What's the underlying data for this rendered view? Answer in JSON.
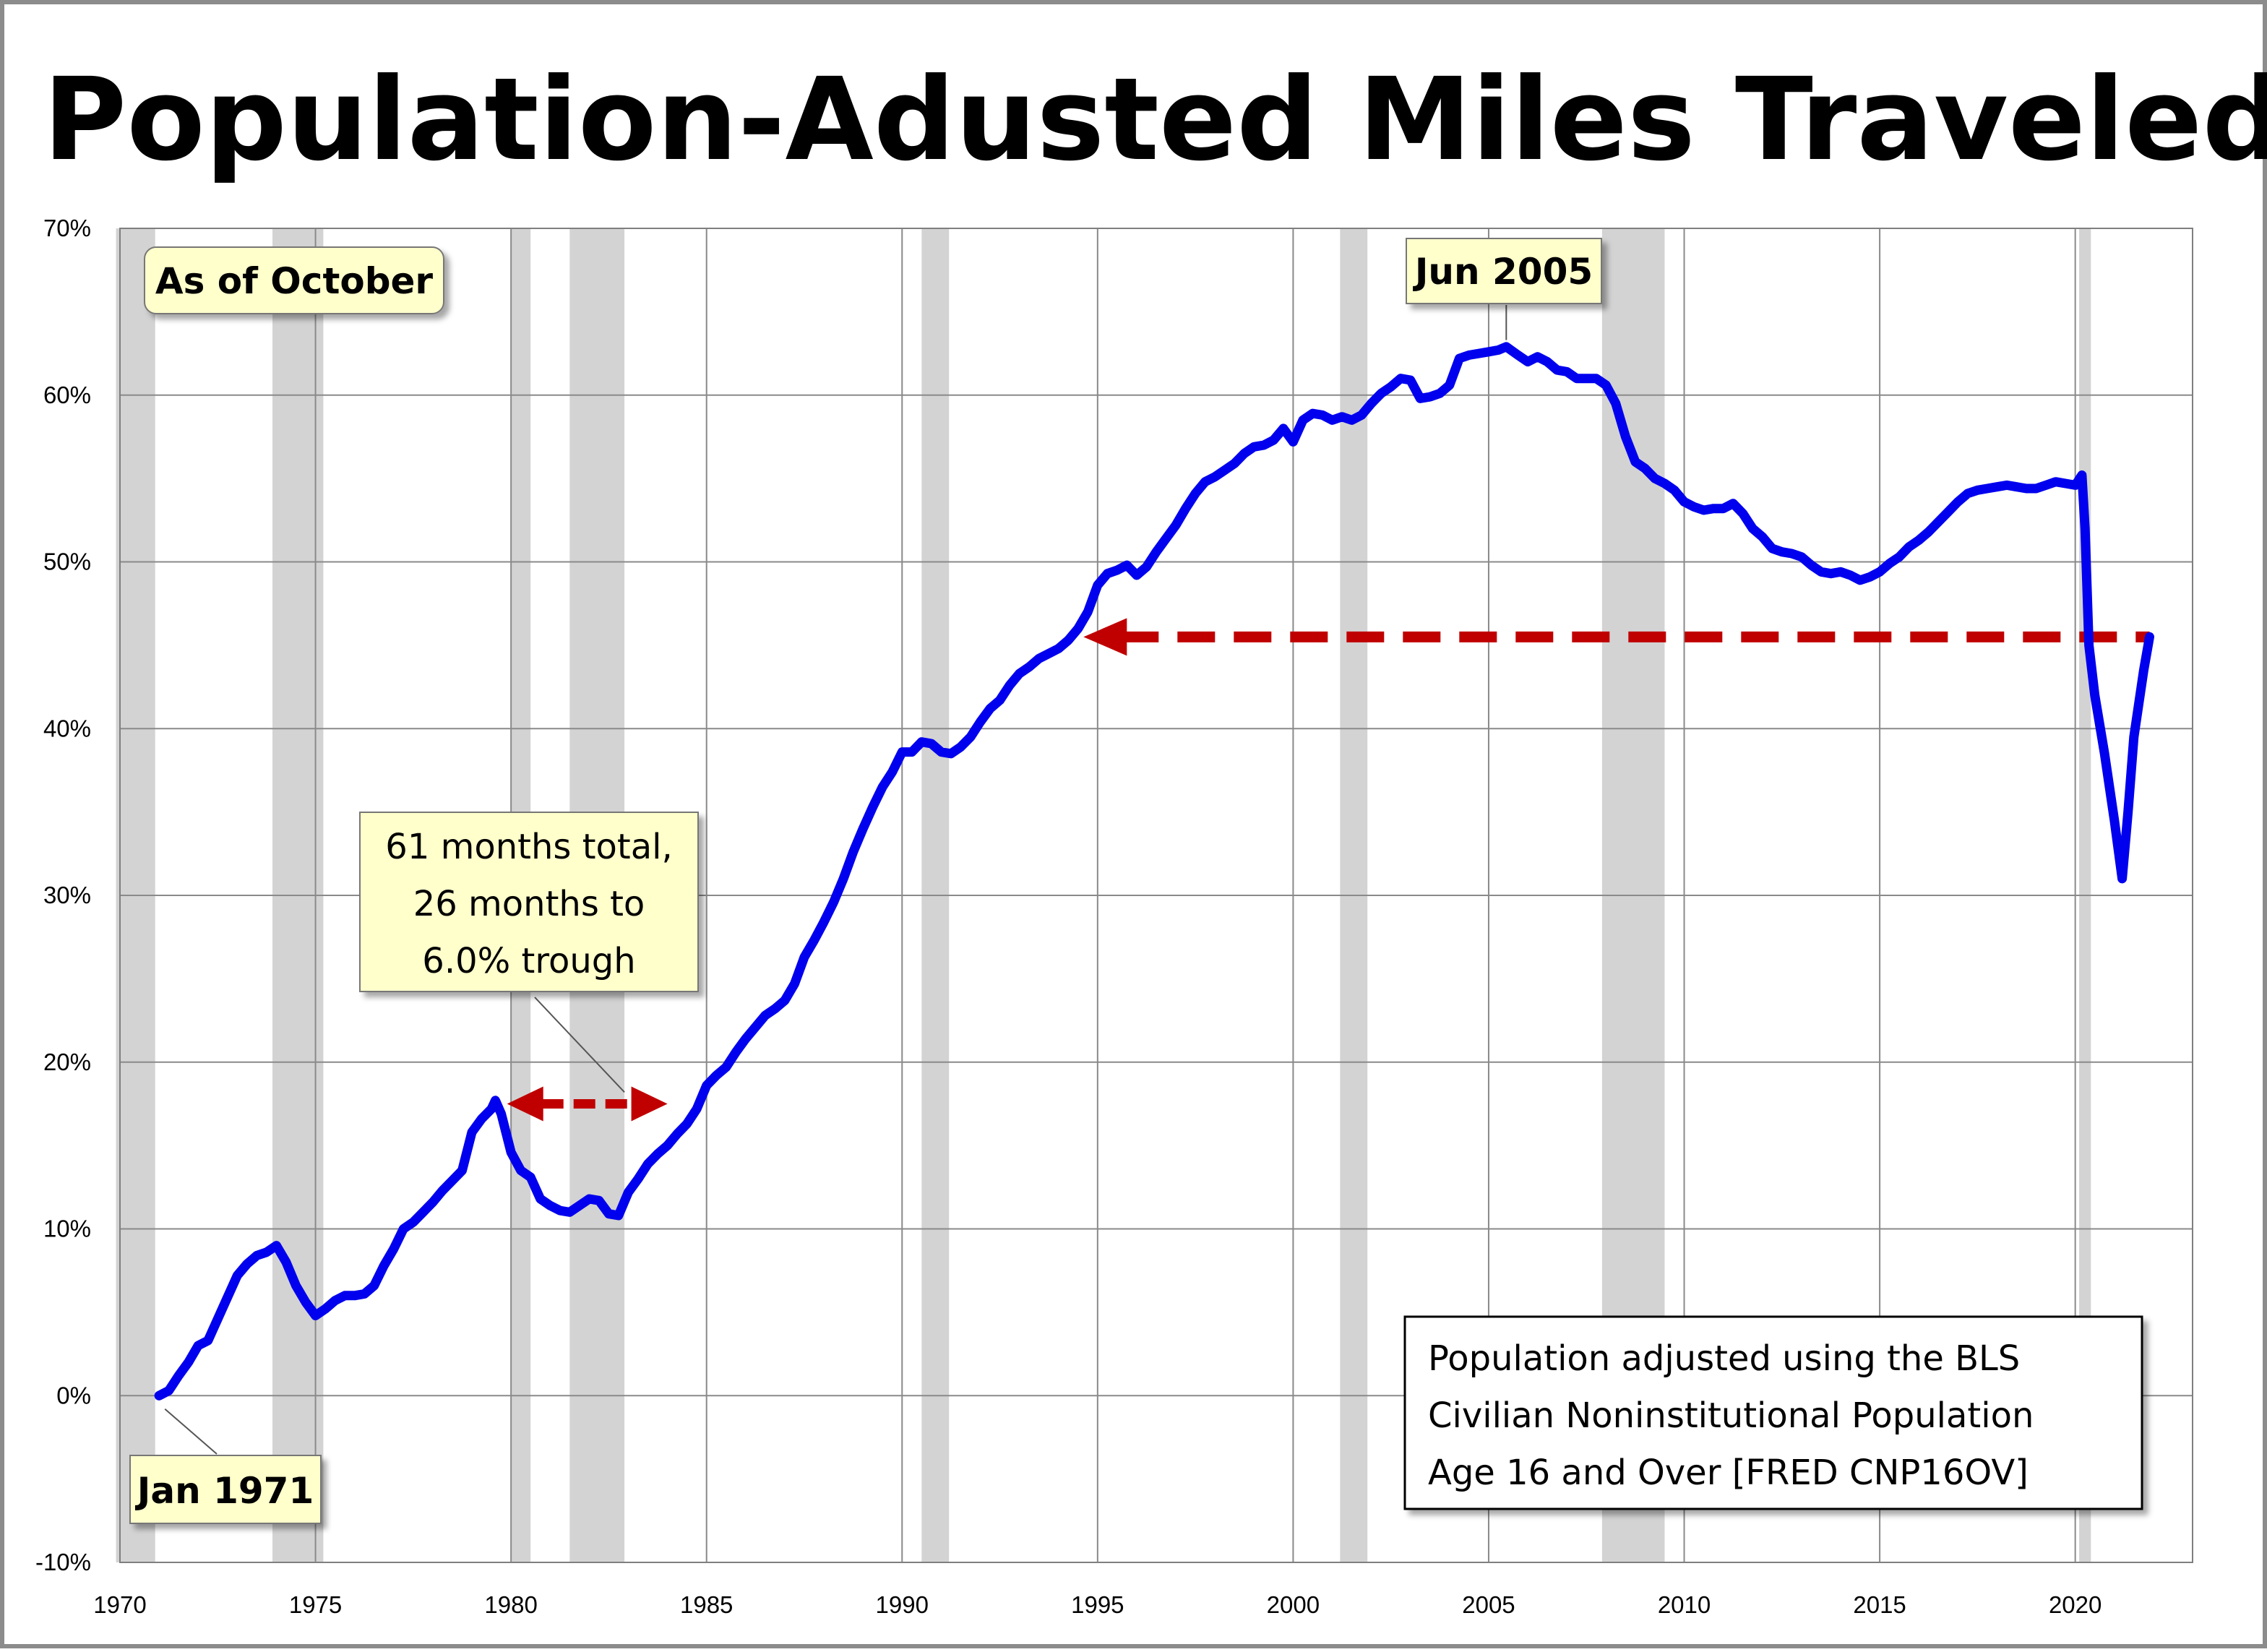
{
  "chart_data": {
    "type": "line",
    "title": "Population-Adusted Miles Traveled",
    "xlim": [
      1970,
      2023
    ],
    "ylim": [
      -10,
      70
    ],
    "x_ticks": [
      "1970",
      "1975",
      "1980",
      "1985",
      "1990",
      "1995",
      "2000",
      "2005",
      "2010",
      "2015",
      "2020"
    ],
    "y_ticks": [
      "70%",
      "60%",
      "50%",
      "40%",
      "30%",
      "20%",
      "10%",
      "0%",
      "-10%"
    ],
    "grid": true,
    "line_color": "#0000ee",
    "recession_color": "#d3d3d3",
    "annotation_color": "#c00000",
    "recessions": [
      [
        1969.9,
        1970.9
      ],
      [
        1973.9,
        1975.2
      ],
      [
        1980.0,
        1980.5
      ],
      [
        1981.5,
        1982.9
      ],
      [
        1990.5,
        1991.2
      ],
      [
        2001.2,
        2001.9
      ],
      [
        2007.9,
        2009.5
      ],
      [
        2020.1,
        2020.4
      ]
    ],
    "series": [
      {
        "points": [
          [
            1971.0,
            0.0
          ],
          [
            1971.25,
            0.3
          ],
          [
            1971.5,
            1.2
          ],
          [
            1971.75,
            2.0
          ],
          [
            1972.0,
            3.0
          ],
          [
            1972.25,
            3.3
          ],
          [
            1972.5,
            4.6
          ],
          [
            1972.75,
            5.9
          ],
          [
            1973.0,
            7.2
          ],
          [
            1973.25,
            7.9
          ],
          [
            1973.5,
            8.4
          ],
          [
            1973.75,
            8.6
          ],
          [
            1974.0,
            9.0
          ],
          [
            1974.25,
            8.0
          ],
          [
            1974.5,
            6.6
          ],
          [
            1974.75,
            5.6
          ],
          [
            1975.0,
            4.8
          ],
          [
            1975.25,
            5.2
          ],
          [
            1975.5,
            5.7
          ],
          [
            1975.75,
            6.0
          ],
          [
            1976.0,
            6.0
          ],
          [
            1976.25,
            6.1
          ],
          [
            1976.5,
            6.6
          ],
          [
            1976.75,
            7.8
          ],
          [
            1977.0,
            8.8
          ],
          [
            1977.25,
            10.0
          ],
          [
            1977.5,
            10.4
          ],
          [
            1977.75,
            11.0
          ],
          [
            1978.0,
            11.6
          ],
          [
            1978.25,
            12.3
          ],
          [
            1978.5,
            12.9
          ],
          [
            1978.75,
            13.5
          ],
          [
            1979.0,
            15.8
          ],
          [
            1979.25,
            16.6
          ],
          [
            1979.5,
            17.2
          ],
          [
            1979.6,
            17.7
          ],
          [
            1979.75,
            16.9
          ],
          [
            1980.0,
            14.6
          ],
          [
            1980.25,
            13.5
          ],
          [
            1980.5,
            13.1
          ],
          [
            1980.75,
            11.8
          ],
          [
            1981.0,
            11.4
          ],
          [
            1981.25,
            11.1
          ],
          [
            1981.5,
            11.0
          ],
          [
            1981.75,
            11.4
          ],
          [
            1982.0,
            11.8
          ],
          [
            1982.25,
            11.7
          ],
          [
            1982.5,
            10.9
          ],
          [
            1982.75,
            10.8
          ],
          [
            1983.0,
            12.2
          ],
          [
            1983.25,
            13.0
          ],
          [
            1983.5,
            13.9
          ],
          [
            1983.75,
            14.5
          ],
          [
            1984.0,
            15.0
          ],
          [
            1984.25,
            15.7
          ],
          [
            1984.5,
            16.3
          ],
          [
            1984.75,
            17.2
          ],
          [
            1985.0,
            18.6
          ],
          [
            1985.25,
            19.2
          ],
          [
            1985.5,
            19.7
          ],
          [
            1985.75,
            20.6
          ],
          [
            1986.0,
            21.4
          ],
          [
            1986.25,
            22.1
          ],
          [
            1986.5,
            22.8
          ],
          [
            1986.75,
            23.2
          ],
          [
            1987.0,
            23.7
          ],
          [
            1987.25,
            24.7
          ],
          [
            1987.5,
            26.3
          ],
          [
            1987.75,
            27.3
          ],
          [
            1988.0,
            28.4
          ],
          [
            1988.25,
            29.6
          ],
          [
            1988.5,
            31.0
          ],
          [
            1988.75,
            32.6
          ],
          [
            1989.0,
            34.0
          ],
          [
            1989.25,
            35.3
          ],
          [
            1989.5,
            36.5
          ],
          [
            1989.75,
            37.4
          ],
          [
            1990.0,
            38.6
          ],
          [
            1990.25,
            38.6
          ],
          [
            1990.5,
            39.2
          ],
          [
            1990.75,
            39.1
          ],
          [
            1991.0,
            38.6
          ],
          [
            1991.25,
            38.5
          ],
          [
            1991.5,
            38.9
          ],
          [
            1991.75,
            39.5
          ],
          [
            1992.0,
            40.4
          ],
          [
            1992.25,
            41.2
          ],
          [
            1992.5,
            41.7
          ],
          [
            1992.75,
            42.6
          ],
          [
            1993.0,
            43.3
          ],
          [
            1993.25,
            43.7
          ],
          [
            1993.5,
            44.2
          ],
          [
            1993.75,
            44.5
          ],
          [
            1994.0,
            44.8
          ],
          [
            1994.25,
            45.3
          ],
          [
            1994.5,
            46.0
          ],
          [
            1994.75,
            47.0
          ],
          [
            1995.0,
            48.6
          ],
          [
            1995.25,
            49.3
          ],
          [
            1995.5,
            49.5
          ],
          [
            1995.75,
            49.8
          ],
          [
            1996.0,
            49.2
          ],
          [
            1996.25,
            49.7
          ],
          [
            1996.5,
            50.6
          ],
          [
            1996.75,
            51.4
          ],
          [
            1997.0,
            52.2
          ],
          [
            1997.25,
            53.2
          ],
          [
            1997.5,
            54.1
          ],
          [
            1997.75,
            54.8
          ],
          [
            1998.0,
            55.1
          ],
          [
            1998.25,
            55.5
          ],
          [
            1998.5,
            55.9
          ],
          [
            1998.75,
            56.5
          ],
          [
            1999.0,
            56.9
          ],
          [
            1999.25,
            57.0
          ],
          [
            1999.5,
            57.3
          ],
          [
            1999.75,
            58.0
          ],
          [
            2000.0,
            57.2
          ],
          [
            2000.25,
            58.5
          ],
          [
            2000.5,
            58.9
          ],
          [
            2000.75,
            58.8
          ],
          [
            2001.0,
            58.5
          ],
          [
            2001.25,
            58.7
          ],
          [
            2001.5,
            58.5
          ],
          [
            2001.75,
            58.8
          ],
          [
            2002.0,
            59.5
          ],
          [
            2002.25,
            60.1
          ],
          [
            2002.5,
            60.5
          ],
          [
            2002.75,
            61.0
          ],
          [
            2003.0,
            60.9
          ],
          [
            2003.25,
            59.8
          ],
          [
            2003.5,
            59.9
          ],
          [
            2003.75,
            60.1
          ],
          [
            2004.0,
            60.6
          ],
          [
            2004.25,
            62.2
          ],
          [
            2004.5,
            62.4
          ],
          [
            2004.75,
            62.5
          ],
          [
            2005.0,
            62.6
          ],
          [
            2005.25,
            62.7
          ],
          [
            2005.45,
            62.9
          ],
          [
            2005.75,
            62.4
          ],
          [
            2006.0,
            62.0
          ],
          [
            2006.25,
            62.3
          ],
          [
            2006.5,
            62.0
          ],
          [
            2006.75,
            61.5
          ],
          [
            2007.0,
            61.4
          ],
          [
            2007.25,
            61.0
          ],
          [
            2007.5,
            61.0
          ],
          [
            2007.75,
            61.0
          ],
          [
            2008.0,
            60.6
          ],
          [
            2008.25,
            59.5
          ],
          [
            2008.5,
            57.5
          ],
          [
            2008.75,
            56.0
          ],
          [
            2009.0,
            55.6
          ],
          [
            2009.25,
            55.0
          ],
          [
            2009.5,
            54.7
          ],
          [
            2009.75,
            54.3
          ],
          [
            2010.0,
            53.6
          ],
          [
            2010.25,
            53.3
          ],
          [
            2010.5,
            53.1
          ],
          [
            2010.75,
            53.2
          ],
          [
            2011.0,
            53.2
          ],
          [
            2011.25,
            53.5
          ],
          [
            2011.5,
            52.9
          ],
          [
            2011.75,
            52.0
          ],
          [
            2012.0,
            51.5
          ],
          [
            2012.25,
            50.8
          ],
          [
            2012.5,
            50.6
          ],
          [
            2012.75,
            50.5
          ],
          [
            2013.0,
            50.3
          ],
          [
            2013.25,
            49.8
          ],
          [
            2013.5,
            49.4
          ],
          [
            2013.75,
            49.3
          ],
          [
            2014.0,
            49.4
          ],
          [
            2014.25,
            49.2
          ],
          [
            2014.5,
            48.9
          ],
          [
            2014.75,
            49.1
          ],
          [
            2015.0,
            49.4
          ],
          [
            2015.25,
            49.9
          ],
          [
            2015.5,
            50.3
          ],
          [
            2015.75,
            50.9
          ],
          [
            2016.0,
            51.3
          ],
          [
            2016.25,
            51.8
          ],
          [
            2016.5,
            52.4
          ],
          [
            2016.75,
            53.0
          ],
          [
            2017.0,
            53.6
          ],
          [
            2017.25,
            54.1
          ],
          [
            2017.5,
            54.3
          ],
          [
            2017.75,
            54.4
          ],
          [
            2018.0,
            54.5
          ],
          [
            2018.25,
            54.6
          ],
          [
            2018.5,
            54.5
          ],
          [
            2018.75,
            54.4
          ],
          [
            2019.0,
            54.4
          ],
          [
            2019.25,
            54.6
          ],
          [
            2019.5,
            54.8
          ],
          [
            2019.75,
            54.7
          ],
          [
            2020.0,
            54.6
          ],
          [
            2020.17,
            55.2
          ],
          [
            2020.25,
            52.0
          ],
          [
            2020.35,
            45.0
          ],
          [
            2020.5,
            42.0
          ],
          [
            2020.75,
            38.5
          ],
          [
            2021.0,
            34.5
          ],
          [
            2021.2,
            31.0
          ],
          [
            2021.35,
            35.0
          ],
          [
            2021.5,
            39.5
          ],
          [
            2021.75,
            43.5
          ],
          [
            2021.9,
            45.5
          ]
        ]
      }
    ],
    "annotations": [
      {
        "text": "As of October"
      },
      {
        "text": "Jun 2005"
      },
      {
        "text": "Jan 1971"
      },
      {
        "lines": [
          "61 months total,",
          "26 months to",
          "6.0% trough"
        ]
      },
      {
        "lines": [
          "Population adjusted using the BLS",
          "Civilian Noninstitutional Population",
          "Age 16 and Over  [FRED CNP16OV]"
        ]
      }
    ],
    "reference_levels": {
      "dashed_horizontal": 45.5,
      "dashed_horizontal_from": 1994.75,
      "dashed_horizontal_to": 2021.9,
      "double_arrow_level": 17.5,
      "double_arrow_from": 1979.9,
      "double_arrow_to": 1984.0
    }
  }
}
